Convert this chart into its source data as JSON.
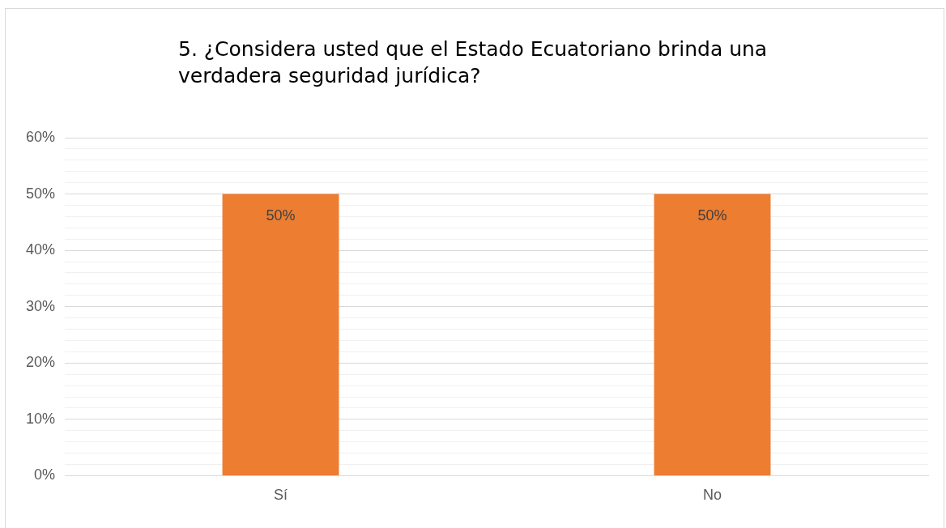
{
  "chart_data": {
    "type": "bar",
    "title": "5. ¿Considera usted que el Estado Ecuatoriano brinda una verdadera seguridad jurídica?",
    "categories": [
      "Sí",
      "No"
    ],
    "values": [
      50,
      50
    ],
    "color": "#ed7d31",
    "value_labels": [
      "50%",
      "50%"
    ],
    "ylim": [
      0,
      60
    ],
    "yticks": [
      {
        "value": 0,
        "label": "0%"
      },
      {
        "value": 2,
        "label": null
      },
      {
        "value": 4,
        "label": null
      },
      {
        "value": 6,
        "label": null
      },
      {
        "value": 8,
        "label": null
      },
      {
        "value": 10,
        "label": "10%"
      },
      {
        "value": 12,
        "label": null
      },
      {
        "value": 14,
        "label": null
      },
      {
        "value": 16,
        "label": null
      },
      {
        "value": 18,
        "label": null
      },
      {
        "value": 20,
        "label": "20%"
      },
      {
        "value": 22,
        "label": null
      },
      {
        "value": 24,
        "label": null
      },
      {
        "value": 26,
        "label": null
      },
      {
        "value": 28,
        "label": null
      },
      {
        "value": 30,
        "label": "30%"
      },
      {
        "value": 32,
        "label": null
      },
      {
        "value": 34,
        "label": null
      },
      {
        "value": 36,
        "label": null
      },
      {
        "value": 38,
        "label": null
      },
      {
        "value": 40,
        "label": "40%"
      },
      {
        "value": 42,
        "label": null
      },
      {
        "value": 44,
        "label": null
      },
      {
        "value": 46,
        "label": null
      },
      {
        "value": 48,
        "label": null
      },
      {
        "value": 50,
        "label": "50%"
      },
      {
        "value": 52,
        "label": null
      },
      {
        "value": 54,
        "label": null
      },
      {
        "value": 56,
        "label": null
      },
      {
        "value": 58,
        "label": null
      },
      {
        "value": 60,
        "label": "60%"
      }
    ],
    "grid": true
  }
}
